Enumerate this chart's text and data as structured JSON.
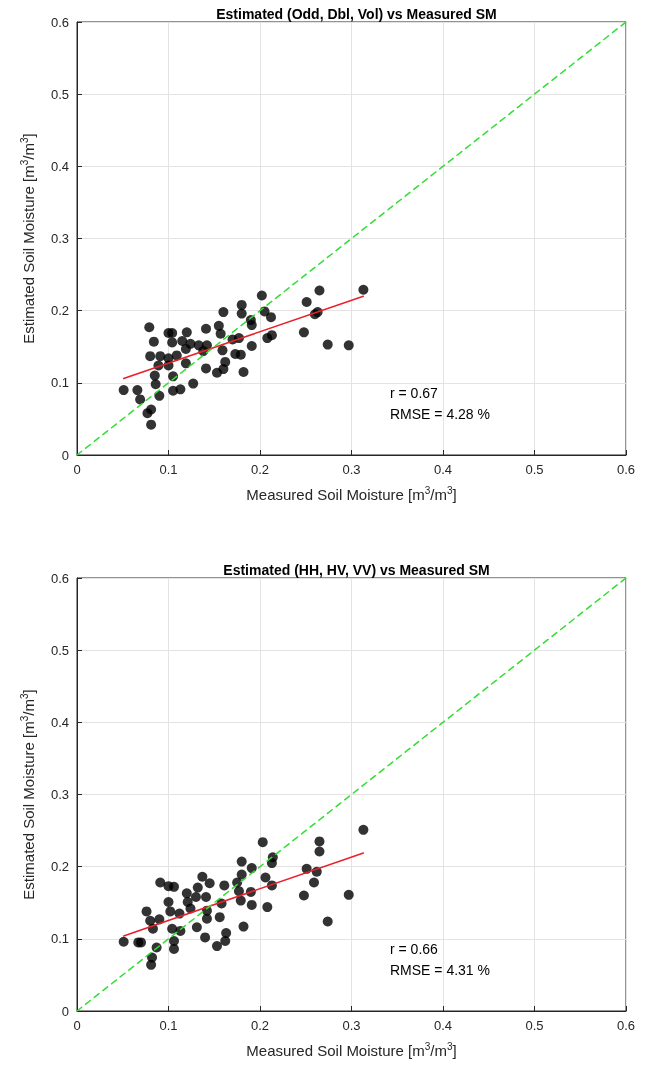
{
  "chart_data": [
    {
      "type": "scatter",
      "title": "Estimated (Odd, Dbl, Vol) vs Measured SM",
      "xlabel": "Measured Soil Moisture [m$^{3}$/m$^{3}$]",
      "ylabel": "Estimated Soil Moisture [m$^{3}$/m$^{3}$]",
      "annotations": [
        "r = 0.67",
        "RMSE = 4.28 %"
      ],
      "xlim": [
        0,
        0.6
      ],
      "ylim": [
        0,
        0.6
      ],
      "xticks": [
        0,
        0.1,
        0.2,
        0.3,
        0.4,
        0.5,
        0.6
      ],
      "yticks": [
        0,
        0.1,
        0.2,
        0.3,
        0.4,
        0.5,
        0.6
      ],
      "grid": true,
      "marker": "circle",
      "series": [
        {
          "color": "#000000",
          "x": [
            0.079,
            0.1,
            0.104,
            0.12,
            0.141,
            0.155,
            0.16,
            0.18,
            0.18,
            0.202,
            0.205,
            0.212,
            0.19,
            0.191,
            0.251,
            0.265,
            0.26,
            0.263,
            0.248,
            0.274,
            0.297,
            0.313,
            0.084,
            0.104,
            0.115,
            0.124,
            0.133,
            0.142,
            0.119,
            0.08,
            0.091,
            0.1,
            0.109,
            0.119,
            0.089,
            0.1,
            0.085,
            0.105,
            0.086,
            0.127,
            0.09,
            0.105,
            0.113,
            0.051,
            0.066,
            0.069,
            0.077,
            0.081,
            0.081,
            0.157,
            0.159,
            0.17,
            0.177,
            0.173,
            0.179,
            0.191,
            0.208,
            0.213,
            0.162,
            0.16,
            0.141,
            0.153,
            0.182,
            0.138
          ],
          "values": [
            0.177,
            0.169,
            0.169,
            0.17,
            0.175,
            0.179,
            0.198,
            0.208,
            0.196,
            0.221,
            0.199,
            0.191,
            0.187,
            0.18,
            0.212,
            0.228,
            0.195,
            0.198,
            0.17,
            0.153,
            0.152,
            0.229,
            0.157,
            0.156,
            0.158,
            0.154,
            0.152,
            0.152,
            0.147,
            0.137,
            0.137,
            0.134,
            0.138,
            0.127,
            0.124,
            0.124,
            0.11,
            0.109,
            0.098,
            0.099,
            0.082,
            0.089,
            0.091,
            0.09,
            0.09,
            0.077,
            0.058,
            0.063,
            0.042,
            0.168,
            0.145,
            0.16,
            0.162,
            0.14,
            0.139,
            0.151,
            0.162,
            0.166,
            0.129,
            0.119,
            0.12,
            0.114,
            0.115,
            0.144
          ]
        },
        {
          "type": "line",
          "color": "#e8202a",
          "line_style": "solid",
          "marker": "none",
          "x": [
            0.051,
            0.313
          ],
          "values": [
            0.106,
            0.22
          ]
        },
        {
          "type": "line",
          "color": "#33dd33",
          "line_style": "dashed",
          "marker": "none",
          "x": [
            0,
            0.6
          ],
          "values": [
            0,
            0.6
          ]
        }
      ]
    },
    {
      "type": "scatter",
      "title": "Estimated (HH, HV, VV) vs Measured SM",
      "xlabel": "Measured Soil Moisture [m$^{3}$/m$^{3}$]",
      "ylabel": "Estimated Soil Moisture [m$^{3}$/m$^{3}$]",
      "annotations": [
        "r = 0.66",
        "RMSE = 4.31 %"
      ],
      "xlim": [
        0,
        0.6
      ],
      "ylim": [
        0,
        0.6
      ],
      "xticks": [
        0,
        0.1,
        0.2,
        0.3,
        0.4,
        0.5,
        0.6
      ],
      "yticks": [
        0,
        0.1,
        0.2,
        0.3,
        0.4,
        0.5,
        0.6
      ],
      "grid": true,
      "marker": "circle",
      "series": [
        {
          "color": "#000000",
          "x": [
            0.051,
            0.067,
            0.07,
            0.081,
            0.082,
            0.087,
            0.076,
            0.08,
            0.083,
            0.09,
            0.091,
            0.1,
            0.106,
            0.1,
            0.102,
            0.104,
            0.106,
            0.106,
            0.113,
            0.112,
            0.12,
            0.121,
            0.124,
            0.132,
            0.13,
            0.137,
            0.145,
            0.141,
            0.142,
            0.142,
            0.131,
            0.14,
            0.153,
            0.163,
            0.162,
            0.156,
            0.161,
            0.158,
            0.175,
            0.18,
            0.18,
            0.191,
            0.177,
            0.179,
            0.19,
            0.191,
            0.182,
            0.203,
            0.206,
            0.213,
            0.213,
            0.214,
            0.208,
            0.248,
            0.251,
            0.259,
            0.262,
            0.265,
            0.265,
            0.274,
            0.297,
            0.313
          ],
          "values": [
            0.096,
            0.095,
            0.095,
            0.064,
            0.074,
            0.088,
            0.138,
            0.125,
            0.114,
            0.127,
            0.178,
            0.173,
            0.172,
            0.151,
            0.138,
            0.114,
            0.097,
            0.086,
            0.111,
            0.135,
            0.163,
            0.151,
            0.142,
            0.171,
            0.158,
            0.186,
            0.177,
            0.158,
            0.139,
            0.128,
            0.116,
            0.102,
            0.09,
            0.108,
            0.097,
            0.13,
            0.174,
            0.149,
            0.178,
            0.207,
            0.189,
            0.198,
            0.166,
            0.153,
            0.165,
            0.147,
            0.117,
            0.234,
            0.185,
            0.174,
            0.205,
            0.213,
            0.144,
            0.16,
            0.197,
            0.178,
            0.193,
            0.235,
            0.221,
            0.124,
            0.161,
            0.251
          ]
        },
        {
          "type": "line",
          "color": "#e8202a",
          "line_style": "solid",
          "marker": "none",
          "x": [
            0.051,
            0.313
          ],
          "values": [
            0.104,
            0.219
          ]
        },
        {
          "type": "line",
          "color": "#33dd33",
          "line_style": "dashed",
          "marker": "none",
          "x": [
            0,
            0.6
          ],
          "values": [
            0,
            0.6
          ]
        }
      ]
    }
  ]
}
